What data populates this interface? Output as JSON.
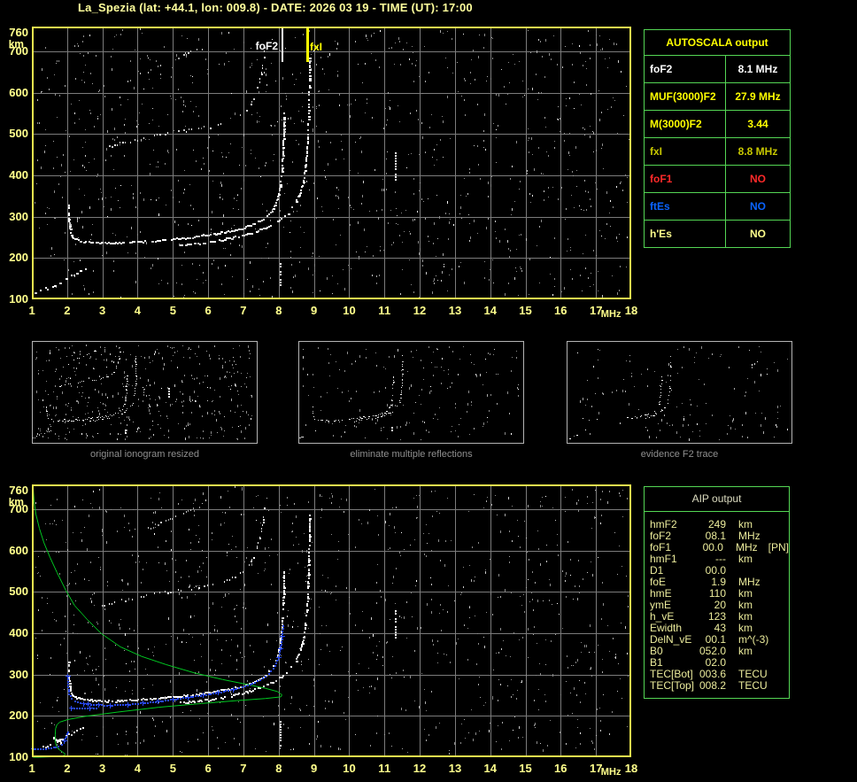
{
  "title": "La_Spezia (lat: +44.1, lon: 009.8) - DATE: 2026 03 19 - TIME (UT): 17:00",
  "autoscala": {
    "title": "AUTOSCALA output",
    "rows": [
      {
        "label": "foF2",
        "value": "8.1 MHz",
        "color": "#FFFFFF"
      },
      {
        "label": "MUF(3000)F2",
        "value": "27.9 MHz",
        "color": "#FFFF00"
      },
      {
        "label": "M(3000)F2",
        "value": "3.44",
        "color": "#FFFF00"
      },
      {
        "label": "fxI",
        "value": "8.8 MHz",
        "color": "#C8C800"
      },
      {
        "label": "foF1",
        "value": "NO",
        "color": "#FF2A2A"
      },
      {
        "label": "ftEs",
        "value": "NO",
        "color": "#0A64FF"
      },
      {
        "label": "h'Es",
        "value": "NO",
        "color": "#FFFF8C"
      }
    ]
  },
  "aip": {
    "title": "AIP output",
    "rows": [
      {
        "label": "hmF2",
        "value": "249",
        "unit": "km",
        "note": ""
      },
      {
        "label": "foF2",
        "value": "08.1",
        "unit": "MHz",
        "note": ""
      },
      {
        "label": "foF1",
        "value": "00.0",
        "unit": "MHz",
        "note": "[PN]"
      },
      {
        "label": "hmF1",
        "value": "---",
        "unit": "km",
        "note": ""
      },
      {
        "label": "D1",
        "value": "00.0",
        "unit": "",
        "note": ""
      },
      {
        "label": "foE",
        "value": "1.9",
        "unit": "MHz",
        "note": ""
      },
      {
        "label": "hmE",
        "value": "110",
        "unit": "km",
        "note": ""
      },
      {
        "label": "ymE",
        "value": "20",
        "unit": "km",
        "note": ""
      },
      {
        "label": "h_vE",
        "value": "123",
        "unit": "km",
        "note": ""
      },
      {
        "label": "Ewidth",
        "value": "43",
        "unit": "km",
        "note": ""
      },
      {
        "label": "DelN_vE",
        "value": "00.1",
        "unit": "m^(-3)",
        "note": ""
      },
      {
        "label": "B0",
        "value": "052.0",
        "unit": "km",
        "note": ""
      },
      {
        "label": "B1",
        "value": "02.0",
        "unit": "",
        "note": ""
      },
      {
        "label": "TEC[Bot]",
        "value": "003.6",
        "unit": "TECU",
        "note": ""
      },
      {
        "label": "TEC[Top]",
        "value": "008.2",
        "unit": "TECU",
        "note": ""
      }
    ]
  },
  "thumbnails": [
    {
      "caption": "original ionogram resized"
    },
    {
      "caption": "eliminate multiple reflections"
    },
    {
      "caption": "evidence F2 trace"
    }
  ],
  "colors": {
    "background": "#000000",
    "title_text": "#FFFF9C",
    "axis_text": "#FFFF8C",
    "plot_border": "#EDE84E",
    "grid": "#7B7B7B",
    "panel_border": "#54D654",
    "echo_white": "#FFFFFF",
    "echo_dim": "#C9C9C9",
    "noise_gray": "#8A8A8A",
    "profile_green": "#00CC22",
    "fit_blue": "#2848F0",
    "caption_text": "#8F8F8F",
    "marker_fof2": "#FFFFFF",
    "marker_fxi": "#FFFF00"
  },
  "chart_data": [
    {
      "type": "scatter",
      "title": "scaled ionogram with foF2 and fxI markers",
      "xlabel": "MHz",
      "ylabel": "km",
      "xlim": [
        1,
        18
      ],
      "ylim": [
        100,
        760
      ],
      "x_ticks": [
        1,
        2,
        3,
        4,
        5,
        6,
        7,
        8,
        9,
        10,
        11,
        12,
        13,
        14,
        15,
        16,
        17,
        18
      ],
      "y_ticks": [
        100,
        200,
        300,
        400,
        500,
        600,
        700,
        760
      ],
      "grid": true,
      "markers": [
        {
          "label": "foF2",
          "mhz": 8.1,
          "value_mhz": 8.1,
          "color": "#FFFFFF"
        },
        {
          "label": "fxI",
          "mhz": 8.8,
          "value_mhz": 8.8,
          "color": "#FFFF00"
        }
      ],
      "traces": {
        "f2_ordinary": [
          [
            2.02,
            330
          ],
          [
            2.04,
            290
          ],
          [
            2.08,
            262
          ],
          [
            2.15,
            250
          ],
          [
            2.3,
            244
          ],
          [
            2.6,
            240
          ],
          [
            3.0,
            238
          ],
          [
            3.5,
            238
          ],
          [
            4.0,
            240
          ],
          [
            4.5,
            243
          ],
          [
            5.0,
            247
          ],
          [
            5.5,
            252
          ],
          [
            6.0,
            258
          ],
          [
            6.5,
            265
          ],
          [
            7.0,
            274
          ],
          [
            7.3,
            284
          ],
          [
            7.6,
            299
          ],
          [
            7.8,
            317
          ],
          [
            7.95,
            344
          ],
          [
            8.03,
            380
          ],
          [
            8.08,
            420
          ],
          [
            8.11,
            465
          ],
          [
            8.13,
            515
          ],
          [
            8.14,
            555
          ]
        ],
        "f2_extraordinary": [
          [
            5.2,
            233
          ],
          [
            5.6,
            236
          ],
          [
            6.0,
            240
          ],
          [
            6.4,
            246
          ],
          [
            6.8,
            253
          ],
          [
            7.2,
            262
          ],
          [
            7.6,
            274
          ],
          [
            7.95,
            290
          ],
          [
            8.25,
            310
          ],
          [
            8.45,
            332
          ],
          [
            8.6,
            360
          ],
          [
            8.7,
            395
          ],
          [
            8.76,
            435
          ],
          [
            8.8,
            480
          ],
          [
            8.83,
            545
          ],
          [
            8.85,
            620
          ],
          [
            8.86,
            690
          ]
        ],
        "second_hop_low": [
          [
            2.9,
            465
          ],
          [
            3.4,
            477
          ],
          [
            4.0,
            489
          ],
          [
            4.7,
            500
          ],
          [
            5.3,
            508
          ],
          [
            5.8,
            515
          ],
          [
            6.2,
            522
          ],
          [
            6.6,
            532
          ],
          [
            6.9,
            546
          ],
          [
            7.15,
            566
          ],
          [
            7.33,
            594
          ],
          [
            7.45,
            630
          ],
          [
            7.55,
            672
          ],
          [
            7.6,
            715
          ]
        ],
        "second_hop_high": [
          [
            3.55,
            620
          ],
          [
            4.0,
            642
          ],
          [
            4.5,
            663
          ],
          [
            5.0,
            682
          ],
          [
            5.5,
            700
          ],
          [
            5.9,
            712
          ]
        ],
        "e_layer": [
          [
            1.0,
            116
          ],
          [
            1.15,
            120
          ],
          [
            1.3,
            125
          ],
          [
            1.5,
            132
          ],
          [
            1.7,
            140
          ],
          [
            1.9,
            149
          ],
          [
            2.1,
            158
          ],
          [
            2.35,
            168
          ],
          [
            2.6,
            176
          ]
        ],
        "interference_verticals": [
          [
            8.02,
            128,
            188
          ],
          [
            11.3,
            388,
            456
          ]
        ]
      }
    },
    {
      "type": "scatter",
      "title": "ionogram with restored electron density profile and fitted trace",
      "xlabel": "MHz",
      "ylabel": "km",
      "xlim": [
        1,
        18
      ],
      "ylim": [
        100,
        760
      ],
      "x_ticks": [
        1,
        2,
        3,
        4,
        5,
        6,
        7,
        8,
        9,
        10,
        11,
        12,
        13,
        14,
        15,
        16,
        17,
        18
      ],
      "y_ticks": [
        100,
        200,
        300,
        400,
        500,
        600,
        700,
        760
      ],
      "grid": true,
      "traces": {
        "f2_ordinary": [
          [
            2.02,
            330
          ],
          [
            2.04,
            290
          ],
          [
            2.08,
            262
          ],
          [
            2.15,
            250
          ],
          [
            2.3,
            244
          ],
          [
            2.6,
            240
          ],
          [
            3.0,
            238
          ],
          [
            3.5,
            238
          ],
          [
            4.0,
            240
          ],
          [
            4.5,
            243
          ],
          [
            5.0,
            247
          ],
          [
            5.5,
            252
          ],
          [
            6.0,
            258
          ],
          [
            6.5,
            265
          ],
          [
            7.0,
            274
          ],
          [
            7.3,
            284
          ],
          [
            7.6,
            299
          ],
          [
            7.8,
            317
          ],
          [
            7.95,
            344
          ],
          [
            8.03,
            380
          ],
          [
            8.08,
            420
          ],
          [
            8.11,
            465
          ],
          [
            8.13,
            515
          ],
          [
            8.14,
            555
          ]
        ],
        "f2_extraordinary": [
          [
            5.2,
            233
          ],
          [
            5.6,
            236
          ],
          [
            6.0,
            240
          ],
          [
            6.4,
            246
          ],
          [
            6.8,
            253
          ],
          [
            7.2,
            262
          ],
          [
            7.6,
            274
          ],
          [
            7.95,
            290
          ],
          [
            8.25,
            310
          ],
          [
            8.45,
            332
          ],
          [
            8.6,
            360
          ],
          [
            8.7,
            395
          ],
          [
            8.76,
            435
          ],
          [
            8.8,
            480
          ],
          [
            8.83,
            545
          ],
          [
            8.85,
            620
          ],
          [
            8.86,
            690
          ]
        ],
        "second_hop_low": [
          [
            2.9,
            465
          ],
          [
            3.4,
            477
          ],
          [
            4.0,
            489
          ],
          [
            4.7,
            500
          ],
          [
            5.3,
            508
          ],
          [
            5.8,
            515
          ],
          [
            6.2,
            522
          ],
          [
            6.6,
            532
          ],
          [
            6.9,
            546
          ],
          [
            7.15,
            566
          ],
          [
            7.33,
            594
          ],
          [
            7.45,
            630
          ],
          [
            7.55,
            672
          ],
          [
            7.6,
            715
          ]
        ],
        "second_hop_high": [
          [
            3.55,
            620
          ],
          [
            4.0,
            642
          ],
          [
            4.5,
            663
          ],
          [
            5.0,
            682
          ],
          [
            5.5,
            700
          ],
          [
            5.9,
            712
          ]
        ],
        "e_layer": [
          [
            1.0,
            116
          ],
          [
            1.15,
            120
          ],
          [
            1.3,
            125
          ],
          [
            1.5,
            132
          ],
          [
            1.7,
            140
          ],
          [
            1.9,
            149
          ],
          [
            2.1,
            158
          ],
          [
            2.35,
            168
          ],
          [
            2.6,
            176
          ]
        ],
        "e_blob": [
          [
            1.6,
            148
          ],
          [
            1.7,
            143
          ],
          [
            1.8,
            138
          ],
          [
            1.9,
            132
          ]
        ],
        "interference_verticals": [
          [
            8.02,
            128,
            188
          ],
          [
            11.3,
            388,
            456
          ]
        ],
        "profile_green": [
          [
            1.02,
            758
          ],
          [
            1.05,
            720
          ],
          [
            1.1,
            690
          ],
          [
            1.2,
            655
          ],
          [
            1.33,
            620
          ],
          [
            1.5,
            585
          ],
          [
            1.7,
            548
          ],
          [
            1.95,
            505
          ],
          [
            2.2,
            468
          ],
          [
            2.55,
            435
          ],
          [
            2.96,
            400
          ],
          [
            3.5,
            368
          ],
          [
            4.1,
            345
          ],
          [
            4.8,
            325
          ],
          [
            5.6,
            305
          ],
          [
            6.4,
            289
          ],
          [
            7.1,
            277
          ],
          [
            7.6,
            268
          ],
          [
            7.95,
            260
          ],
          [
            8.08,
            252
          ],
          [
            8.05,
            247
          ],
          [
            7.6,
            243
          ],
          [
            6.8,
            238
          ],
          [
            5.8,
            231
          ],
          [
            4.6,
            222
          ],
          [
            3.4,
            210
          ],
          [
            2.5,
            200
          ],
          [
            2.0,
            192
          ],
          [
            1.78,
            186
          ],
          [
            1.7,
            180
          ],
          [
            1.66,
            170
          ],
          [
            1.65,
            155
          ],
          [
            1.65,
            140
          ],
          [
            1.68,
            128
          ],
          [
            1.75,
            120
          ],
          [
            1.85,
            114
          ],
          [
            1.93,
            109
          ],
          [
            1.9,
            105
          ],
          [
            1.75,
            103
          ],
          [
            1.5,
            102
          ],
          [
            1.2,
            101
          ],
          [
            1.02,
            101
          ]
        ],
        "fit_blue_f2": [
          [
            2.0,
            298
          ],
          [
            2.01,
            272
          ],
          [
            2.04,
            254
          ],
          [
            2.1,
            244
          ],
          [
            2.2,
            237
          ],
          [
            2.45,
            231
          ],
          [
            2.8,
            228
          ],
          [
            3.2,
            227
          ],
          [
            3.7,
            229
          ],
          [
            4.2,
            233
          ],
          [
            4.7,
            238
          ],
          [
            5.2,
            244
          ],
          [
            5.7,
            250
          ],
          [
            6.2,
            257
          ],
          [
            6.7,
            266
          ],
          [
            7.1,
            275
          ],
          [
            7.45,
            288
          ],
          [
            7.7,
            303
          ],
          [
            7.88,
            322
          ],
          [
            8.0,
            350
          ],
          [
            8.07,
            388
          ],
          [
            8.1,
            420
          ]
        ],
        "fit_blue_flat": [
          [
            2.1,
            221
          ],
          [
            2.8,
            221
          ]
        ],
        "fit_blue_e": [
          [
            1.02,
            122
          ],
          [
            1.15,
            122
          ],
          [
            1.3,
            122
          ],
          [
            1.45,
            123
          ],
          [
            1.6,
            125
          ],
          [
            1.72,
            128
          ],
          [
            1.82,
            133
          ],
          [
            1.9,
            141
          ],
          [
            1.96,
            152
          ],
          [
            2.0,
            163
          ]
        ]
      }
    }
  ]
}
